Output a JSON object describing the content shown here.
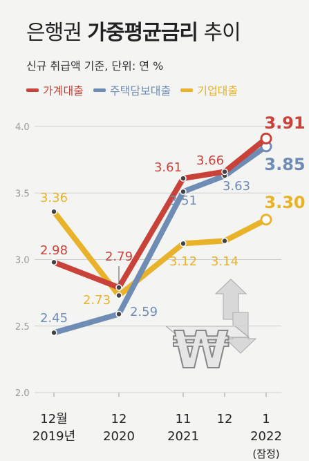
{
  "header": {
    "title_plain_1": "은행권 ",
    "title_bold": "가중평균금리",
    "title_plain_2": " 추이",
    "subtitle": "신규 취급액 기준, 단위: 연 %"
  },
  "colors": {
    "household": "#c9423a",
    "mortgage": "#6f8cb5",
    "corporate": "#e8b22a"
  },
  "chart_data": {
    "type": "line",
    "categories": [
      [
        "12월",
        "2019년"
      ],
      [
        "12",
        "2020"
      ],
      [
        "11",
        "2021"
      ],
      [
        "12",
        ""
      ],
      [
        "1",
        "2022",
        "(잠정)"
      ]
    ],
    "x": [
      2019.917,
      2020.917,
      2021.833,
      2021.917,
      2022.0
    ],
    "yticks": [
      "2.0",
      "2.5",
      "3.0",
      "3.5",
      "4.0"
    ],
    "ylim": [
      2.0,
      4.0
    ],
    "series": [
      {
        "name": "가계대출",
        "values": [
          2.98,
          2.79,
          3.61,
          3.66,
          3.91
        ],
        "labels": [
          "2.98",
          "2.79",
          "3.61",
          "3.66",
          "3.91"
        ]
      },
      {
        "name": "주택담보대출",
        "values": [
          2.45,
          2.59,
          3.51,
          3.63,
          3.85
        ],
        "labels": [
          "2.45",
          "2.59",
          "3.51",
          "3.63",
          "3.85"
        ]
      },
      {
        "name": "기업대출",
        "values": [
          3.36,
          2.73,
          3.12,
          3.14,
          3.3
        ],
        "labels": [
          "3.36",
          "2.73",
          "3.12",
          "3.14",
          "3.30"
        ]
      }
    ]
  }
}
